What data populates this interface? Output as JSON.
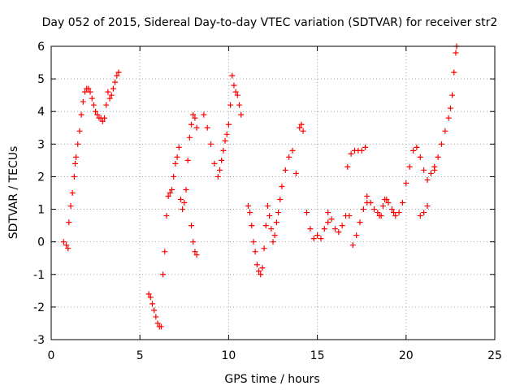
{
  "chart_data": {
    "type": "scatter",
    "title": "Day 052 of 2015, Sidereal Day-to-day VTEC variation (SDTVAR) for receiver str2",
    "xlabel": "GPS time / hours",
    "ylabel": "SDTVAR / TECUs",
    "xlim": [
      0,
      25
    ],
    "ylim": [
      -3,
      6
    ],
    "xticks": [
      0,
      5,
      10,
      15,
      20,
      25
    ],
    "yticks": [
      -3,
      -2,
      -1,
      0,
      1,
      2,
      3,
      4,
      5,
      6
    ],
    "grid": true,
    "marker": "+",
    "color": "#ff0000",
    "series": [
      {
        "name": "str2",
        "x": [
          0.7,
          0.85,
          0.95,
          1.0,
          1.1,
          1.2,
          1.3,
          1.35,
          1.4,
          1.5,
          1.6,
          1.7,
          1.8,
          1.9,
          2.0,
          2.1,
          2.2,
          2.3,
          2.4,
          2.5,
          2.6,
          2.7,
          2.8,
          2.9,
          3.0,
          3.1,
          3.2,
          3.3,
          3.4,
          3.5,
          3.6,
          3.7,
          3.8,
          5.5,
          5.6,
          5.7,
          5.8,
          5.9,
          6.0,
          6.1,
          6.2,
          6.3,
          6.4,
          6.5,
          6.6,
          6.7,
          6.8,
          6.9,
          7.0,
          7.1,
          7.2,
          7.3,
          7.4,
          7.5,
          7.6,
          7.7,
          7.8,
          7.9,
          8.0,
          8.1,
          8.2,
          7.9,
          8.0,
          8.1,
          8.2,
          8.6,
          8.8,
          9.0,
          9.2,
          9.4,
          9.5,
          9.6,
          9.7,
          9.8,
          9.9,
          10.0,
          10.1,
          10.2,
          10.3,
          10.4,
          10.5,
          10.6,
          10.7,
          11.1,
          11.2,
          11.3,
          11.4,
          11.5,
          11.6,
          11.7,
          11.8,
          11.9,
          12.0,
          12.1,
          12.2,
          12.3,
          12.4,
          12.5,
          12.6,
          12.7,
          12.8,
          12.9,
          13.0,
          13.2,
          13.4,
          13.6,
          13.8,
          14.0,
          14.1,
          14.2,
          14.4,
          14.6,
          14.8,
          15.0,
          15.2,
          15.4,
          15.6,
          15.6,
          15.8,
          16.0,
          16.2,
          16.4,
          16.6,
          16.8,
          17.0,
          17.2,
          17.4,
          17.6,
          17.8,
          16.7,
          16.9,
          17.1,
          17.3,
          17.5,
          17.7,
          17.8,
          18.0,
          18.2,
          18.4,
          18.5,
          18.6,
          18.7,
          18.8,
          18.9,
          19.0,
          19.2,
          19.3,
          19.4,
          19.6,
          19.8,
          20.0,
          20.2,
          20.4,
          20.6,
          20.8,
          21.0,
          21.2,
          21.4,
          21.6,
          20.8,
          21.0,
          21.2,
          21.6,
          21.8,
          22.0,
          22.2,
          22.4,
          22.5,
          22.6,
          22.7,
          22.8,
          22.85
        ],
        "y": [
          0.0,
          -0.1,
          -0.2,
          0.6,
          1.1,
          1.5,
          2.0,
          2.4,
          2.6,
          3.0,
          3.4,
          3.9,
          4.3,
          4.6,
          4.7,
          4.7,
          4.6,
          4.4,
          4.2,
          4.0,
          3.9,
          3.8,
          3.8,
          3.7,
          3.8,
          4.2,
          4.6,
          4.4,
          4.5,
          4.7,
          4.9,
          5.1,
          5.2,
          -1.6,
          -1.7,
          -1.9,
          -2.1,
          -2.3,
          -2.5,
          -2.6,
          -2.6,
          -1.0,
          -0.3,
          0.8,
          1.4,
          1.5,
          1.6,
          2.0,
          2.4,
          2.6,
          2.9,
          1.3,
          1.0,
          1.2,
          1.6,
          2.5,
          3.2,
          3.6,
          3.9,
          3.8,
          3.5,
          0.5,
          0.0,
          -0.3,
          -0.4,
          3.9,
          3.5,
          3.0,
          2.4,
          2.0,
          2.2,
          2.5,
          2.8,
          3.1,
          3.3,
          3.6,
          4.2,
          5.1,
          4.8,
          4.6,
          4.5,
          4.2,
          3.9,
          1.1,
          0.9,
          0.5,
          0.0,
          -0.3,
          -0.7,
          -0.9,
          -1.0,
          -0.8,
          -0.2,
          0.5,
          1.1,
          0.8,
          0.4,
          0.0,
          0.2,
          0.6,
          0.9,
          1.3,
          1.7,
          2.2,
          2.6,
          2.8,
          2.1,
          3.5,
          3.6,
          3.4,
          0.9,
          0.4,
          0.1,
          0.2,
          0.1,
          0.4,
          0.6,
          0.9,
          0.7,
          0.4,
          0.3,
          0.5,
          0.8,
          0.8,
          -0.1,
          0.2,
          0.6,
          1.0,
          1.4,
          2.3,
          2.7,
          2.8,
          2.8,
          2.8,
          2.9,
          1.2,
          1.2,
          1.0,
          0.9,
          0.8,
          0.8,
          1.1,
          1.3,
          1.3,
          1.2,
          1.0,
          0.9,
          0.8,
          0.9,
          1.2,
          1.8,
          2.3,
          2.8,
          2.9,
          2.6,
          2.2,
          1.9,
          2.1,
          2.3,
          0.8,
          0.9,
          1.1,
          2.2,
          2.6,
          3.0,
          3.4,
          3.8,
          4.1,
          4.5,
          5.2,
          5.8,
          6.0
        ]
      }
    ]
  }
}
